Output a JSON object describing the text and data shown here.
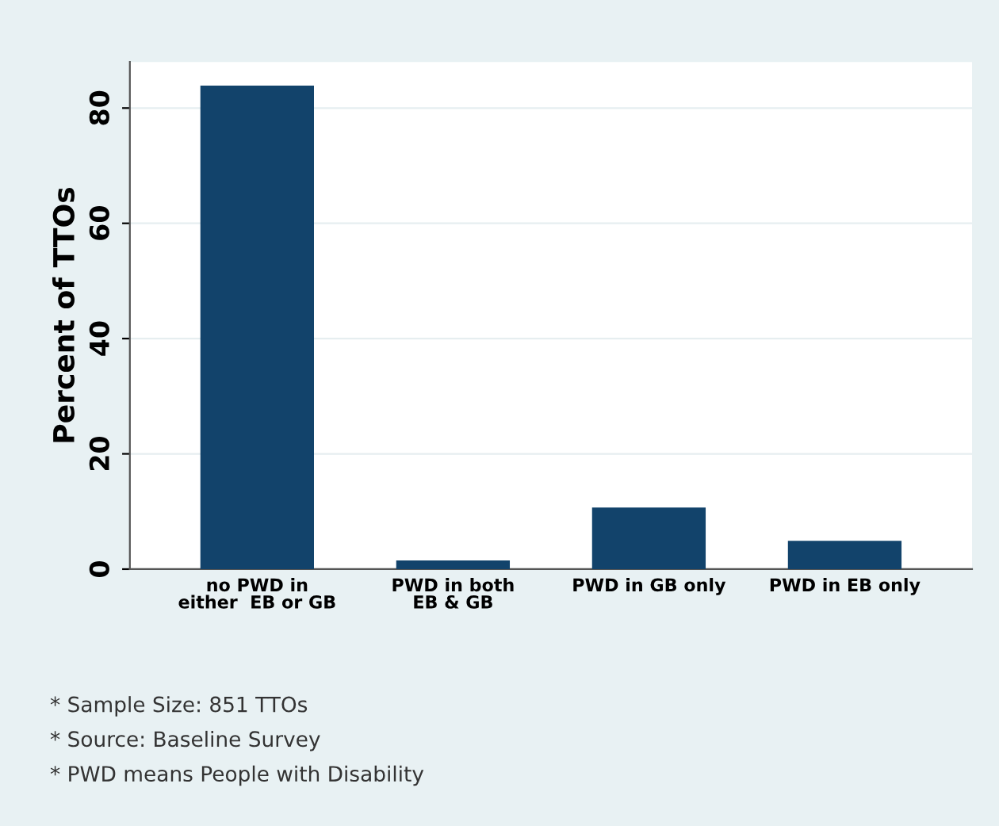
{
  "chart_data": {
    "type": "bar",
    "ylabel": "Percent of TTOs",
    "categories": [
      "no PWD in\neither  EB or GB",
      "PWD in both\nEB & GB",
      "PWD in GB only",
      "PWD in EB only"
    ],
    "values": [
      83.9,
      1.5,
      10.7,
      4.9
    ],
    "color": "#12436b",
    "ylim": [
      0,
      88
    ],
    "yticks": [
      0,
      20,
      40,
      60,
      80
    ],
    "grid": "y",
    "legend": false,
    "annotations": [
      "* Sample Size: 851 TTOs",
      "* Source: Baseline Survey",
      "* PWD means People with Disability"
    ]
  }
}
